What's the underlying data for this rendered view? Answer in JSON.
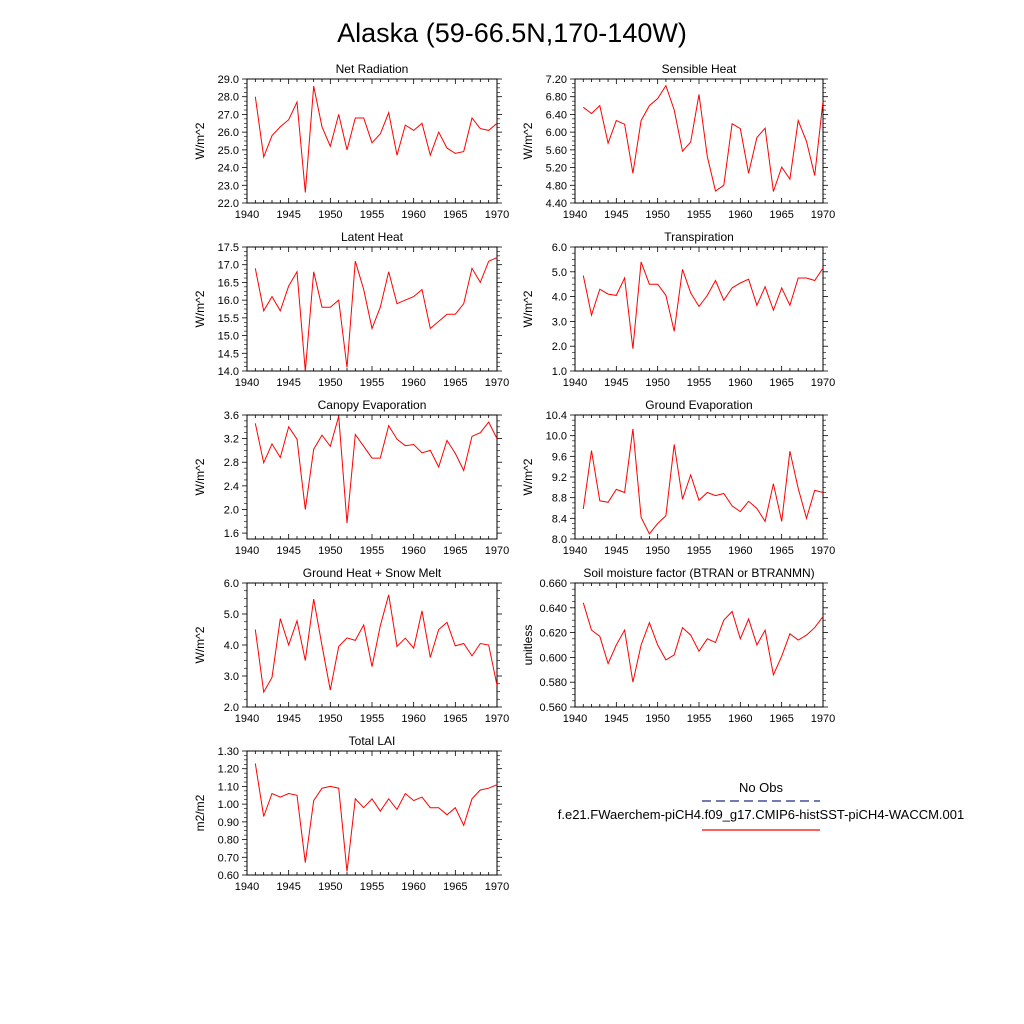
{
  "title": "Alaska (59-66.5N,170-140W)",
  "legend": {
    "obs_label": "No Obs",
    "model_label": "f.e21.FWaerchem-piCH4.f09_g17.CMIP6-histSST-piCH4-WACCM.001",
    "obs_color": "#1f2a8a",
    "model_color": "#ff0000"
  },
  "chart_data": [
    {
      "type": "line",
      "title": "Net Radiation",
      "ylabel": "W/m^2",
      "xlim": [
        1940,
        1970
      ],
      "ylim": [
        22.0,
        29.0
      ],
      "yticks": [
        "22.0",
        "23.0",
        "24.0",
        "25.0",
        "26.0",
        "27.0",
        "28.0",
        "29.0"
      ],
      "xticks": [
        "1940",
        "1945",
        "1950",
        "1955",
        "1960",
        "1965",
        "1970"
      ],
      "x": [
        1941,
        1942,
        1943,
        1944,
        1945,
        1946,
        1947,
        1948,
        1949,
        1950,
        1951,
        1952,
        1953,
        1954,
        1955,
        1956,
        1957,
        1958,
        1959,
        1960,
        1961,
        1962,
        1963,
        1964,
        1965,
        1966,
        1967,
        1968,
        1969,
        1970
      ],
      "series": [
        {
          "color": "#ff0000",
          "values": [
            28.0,
            24.6,
            25.8,
            26.3,
            26.7,
            27.7,
            22.6,
            28.6,
            26.3,
            25.2,
            27.0,
            25.0,
            26.8,
            26.8,
            25.4,
            25.9,
            27.1,
            24.7,
            26.4,
            26.1,
            26.5,
            24.7,
            26.0,
            25.1,
            24.8,
            24.9,
            26.8,
            26.2,
            26.1,
            26.5
          ]
        }
      ]
    },
    {
      "type": "line",
      "title": "Sensible Heat",
      "ylabel": "W/m^2",
      "xlim": [
        1940,
        1970
      ],
      "ylim": [
        4.4,
        7.2
      ],
      "yticks": [
        "4.40",
        "4.80",
        "5.20",
        "5.60",
        "6.00",
        "6.40",
        "6.80",
        "7.20"
      ],
      "xticks": [
        "1940",
        "1945",
        "1950",
        "1955",
        "1960",
        "1965",
        "1970"
      ],
      "x": [
        1941,
        1942,
        1943,
        1944,
        1945,
        1946,
        1947,
        1948,
        1949,
        1950,
        1951,
        1952,
        1953,
        1954,
        1955,
        1956,
        1957,
        1958,
        1959,
        1960,
        1961,
        1962,
        1963,
        1964,
        1965,
        1966,
        1967,
        1968,
        1969,
        1970
      ],
      "series": [
        {
          "color": "#ff0000",
          "values": [
            6.56,
            6.42,
            6.6,
            5.75,
            6.26,
            6.18,
            5.07,
            6.26,
            6.6,
            6.76,
            7.05,
            6.5,
            5.57,
            5.78,
            6.85,
            5.45,
            4.67,
            4.8,
            6.19,
            6.08,
            5.07,
            5.88,
            6.09,
            4.66,
            5.21,
            4.94,
            6.26,
            5.79,
            5.02,
            6.7
          ]
        }
      ]
    },
    {
      "type": "line",
      "title": "Latent Heat",
      "ylabel": "W/m^2",
      "xlim": [
        1940,
        1970
      ],
      "ylim": [
        14.0,
        17.5
      ],
      "yticks": [
        "14.0",
        "14.5",
        "15.0",
        "15.5",
        "16.0",
        "16.5",
        "17.0",
        "17.5"
      ],
      "xticks": [
        "1940",
        "1945",
        "1950",
        "1955",
        "1960",
        "1965",
        "1970"
      ],
      "x": [
        1941,
        1942,
        1943,
        1944,
        1945,
        1946,
        1947,
        1948,
        1949,
        1950,
        1951,
        1952,
        1953,
        1954,
        1955,
        1956,
        1957,
        1958,
        1959,
        1960,
        1961,
        1962,
        1963,
        1964,
        1965,
        1966,
        1967,
        1968,
        1969,
        1970
      ],
      "series": [
        {
          "color": "#ff0000",
          "values": [
            16.9,
            15.7,
            16.1,
            15.7,
            16.4,
            16.8,
            14.0,
            16.8,
            15.8,
            15.8,
            16.0,
            14.1,
            17.1,
            16.3,
            15.2,
            15.8,
            16.8,
            15.9,
            16.0,
            16.1,
            16.3,
            15.2,
            15.4,
            15.6,
            15.6,
            15.9,
            16.9,
            16.5,
            17.1,
            17.2
          ]
        }
      ]
    },
    {
      "type": "line",
      "title": "Transpiration",
      "ylabel": "W/m^2",
      "xlim": [
        1940,
        1970
      ],
      "ylim": [
        1.0,
        6.0
      ],
      "yticks": [
        "1.0",
        "2.0",
        "3.0",
        "4.0",
        "5.0",
        "6.0"
      ],
      "xticks": [
        "1940",
        "1945",
        "1950",
        "1955",
        "1960",
        "1965",
        "1970"
      ],
      "x": [
        1941,
        1942,
        1943,
        1944,
        1945,
        1946,
        1947,
        1948,
        1949,
        1950,
        1951,
        1952,
        1953,
        1954,
        1955,
        1956,
        1957,
        1958,
        1959,
        1960,
        1961,
        1962,
        1963,
        1964,
        1965,
        1966,
        1967,
        1968,
        1969,
        1970
      ],
      "series": [
        {
          "color": "#ff0000",
          "values": [
            4.85,
            3.25,
            4.3,
            4.1,
            4.05,
            4.75,
            1.9,
            5.4,
            4.5,
            4.5,
            4.05,
            2.6,
            5.1,
            4.15,
            3.6,
            4.05,
            4.65,
            3.85,
            4.35,
            4.55,
            4.7,
            3.65,
            4.4,
            3.45,
            4.35,
            3.65,
            4.75,
            4.75,
            4.65,
            5.15
          ]
        }
      ]
    },
    {
      "type": "line",
      "title": "Canopy Evaporation",
      "ylabel": "W/m^2",
      "xlim": [
        1940,
        1970
      ],
      "ylim": [
        1.5,
        3.6
      ],
      "yticks": [
        "1.6",
        "2.0",
        "2.4",
        "2.8",
        "3.2",
        "3.6"
      ],
      "xticks": [
        "1940",
        "1945",
        "1950",
        "1955",
        "1960",
        "1965",
        "1970"
      ],
      "x": [
        1941,
        1942,
        1943,
        1944,
        1945,
        1946,
        1947,
        1948,
        1949,
        1950,
        1951,
        1952,
        1953,
        1954,
        1955,
        1956,
        1957,
        1958,
        1959,
        1960,
        1961,
        1962,
        1963,
        1964,
        1965,
        1966,
        1967,
        1968,
        1969,
        1970
      ],
      "series": [
        {
          "color": "#ff0000",
          "values": [
            3.46,
            2.79,
            3.11,
            2.88,
            3.4,
            3.19,
            2.0,
            3.02,
            3.26,
            3.07,
            3.58,
            1.77,
            3.27,
            3.07,
            2.87,
            2.87,
            3.42,
            3.19,
            3.08,
            3.1,
            2.96,
            3.0,
            2.72,
            3.17,
            2.95,
            2.66,
            3.24,
            3.3,
            3.48,
            3.2
          ]
        }
      ]
    },
    {
      "type": "line",
      "title": "Ground Evaporation",
      "ylabel": "W/m^2",
      "xlim": [
        1940,
        1970
      ],
      "ylim": [
        8.0,
        10.4
      ],
      "yticks": [
        "8.0",
        "8.4",
        "8.8",
        "9.2",
        "9.6",
        "10.0",
        "10.4"
      ],
      "xticks": [
        "1940",
        "1945",
        "1950",
        "1955",
        "1960",
        "1965",
        "1970"
      ],
      "x": [
        1941,
        1942,
        1943,
        1944,
        1945,
        1946,
        1947,
        1948,
        1949,
        1950,
        1951,
        1952,
        1953,
        1954,
        1955,
        1956,
        1957,
        1958,
        1959,
        1960,
        1961,
        1962,
        1963,
        1964,
        1965,
        1966,
        1967,
        1968,
        1969,
        1970
      ],
      "series": [
        {
          "color": "#ff0000",
          "values": [
            8.58,
            9.71,
            8.74,
            8.71,
            8.96,
            8.9,
            10.13,
            8.42,
            8.1,
            8.3,
            8.45,
            9.83,
            8.77,
            9.24,
            8.75,
            8.9,
            8.84,
            8.88,
            8.64,
            8.53,
            8.73,
            8.59,
            8.34,
            9.07,
            8.34,
            9.7,
            8.98,
            8.4,
            8.94,
            8.9
          ]
        }
      ]
    },
    {
      "type": "line",
      "title": "Ground Heat + Snow Melt",
      "ylabel": "W/m^2",
      "xlim": [
        1940,
        1970
      ],
      "ylim": [
        2.0,
        6.0
      ],
      "yticks": [
        "2.0",
        "3.0",
        "4.0",
        "5.0",
        "6.0"
      ],
      "xticks": [
        "1940",
        "1945",
        "1950",
        "1955",
        "1960",
        "1965",
        "1970"
      ],
      "x": [
        1941,
        1942,
        1943,
        1944,
        1945,
        1946,
        1947,
        1948,
        1949,
        1950,
        1951,
        1952,
        1953,
        1954,
        1955,
        1956,
        1957,
        1958,
        1959,
        1960,
        1961,
        1962,
        1963,
        1964,
        1965,
        1966,
        1967,
        1968,
        1969,
        1970
      ],
      "series": [
        {
          "color": "#ff0000",
          "values": [
            4.5,
            2.48,
            2.95,
            4.85,
            4.0,
            4.78,
            3.5,
            5.48,
            3.98,
            2.55,
            3.95,
            4.23,
            4.15,
            4.65,
            3.3,
            4.62,
            5.62,
            3.95,
            4.22,
            3.9,
            5.1,
            3.6,
            4.5,
            4.73,
            3.97,
            4.05,
            3.65,
            4.05,
            4.0,
            2.7
          ]
        }
      ]
    },
    {
      "type": "line",
      "title": "Soil moisture factor (BTRAN or BTRANMN)",
      "ylabel": "unitless",
      "xlim": [
        1940,
        1970
      ],
      "ylim": [
        0.56,
        0.66
      ],
      "yticks": [
        "0.560",
        "0.580",
        "0.600",
        "0.620",
        "0.640",
        "0.660"
      ],
      "xticks": [
        "1940",
        "1945",
        "1950",
        "1955",
        "1960",
        "1965",
        "1970"
      ],
      "x": [
        1941,
        1942,
        1943,
        1944,
        1945,
        1946,
        1947,
        1948,
        1949,
        1950,
        1951,
        1952,
        1953,
        1954,
        1955,
        1956,
        1957,
        1958,
        1959,
        1960,
        1961,
        1962,
        1963,
        1964,
        1965,
        1966,
        1967,
        1968,
        1969,
        1970
      ],
      "series": [
        {
          "color": "#ff0000",
          "values": [
            0.644,
            0.622,
            0.617,
            0.595,
            0.61,
            0.622,
            0.58,
            0.61,
            0.628,
            0.61,
            0.598,
            0.602,
            0.624,
            0.618,
            0.605,
            0.615,
            0.612,
            0.63,
            0.637,
            0.615,
            0.631,
            0.61,
            0.622,
            0.586,
            0.601,
            0.619,
            0.614,
            0.618,
            0.624,
            0.633
          ]
        }
      ]
    },
    {
      "type": "line",
      "title": "Total LAI",
      "ylabel": "m2/m2",
      "xlim": [
        1940,
        1970
      ],
      "ylim": [
        0.6,
        1.3
      ],
      "yticks": [
        "0.60",
        "0.70",
        "0.80",
        "0.90",
        "1.00",
        "1.10",
        "1.20",
        "1.30"
      ],
      "xticks": [
        "1940",
        "1945",
        "1950",
        "1955",
        "1960",
        "1965",
        "1970"
      ],
      "x": [
        1941,
        1942,
        1943,
        1944,
        1945,
        1946,
        1947,
        1948,
        1949,
        1950,
        1951,
        1952,
        1953,
        1954,
        1955,
        1956,
        1957,
        1958,
        1959,
        1960,
        1961,
        1962,
        1963,
        1964,
        1965,
        1966,
        1967,
        1968,
        1969,
        1970
      ],
      "series": [
        {
          "color": "#ff0000",
          "values": [
            1.23,
            0.93,
            1.06,
            1.04,
            1.06,
            1.05,
            0.67,
            1.02,
            1.09,
            1.1,
            1.09,
            0.62,
            1.03,
            0.98,
            1.03,
            0.96,
            1.03,
            0.97,
            1.06,
            1.02,
            1.04,
            0.98,
            0.98,
            0.94,
            0.98,
            0.88,
            1.03,
            1.08,
            1.09,
            1.11
          ]
        }
      ]
    }
  ]
}
